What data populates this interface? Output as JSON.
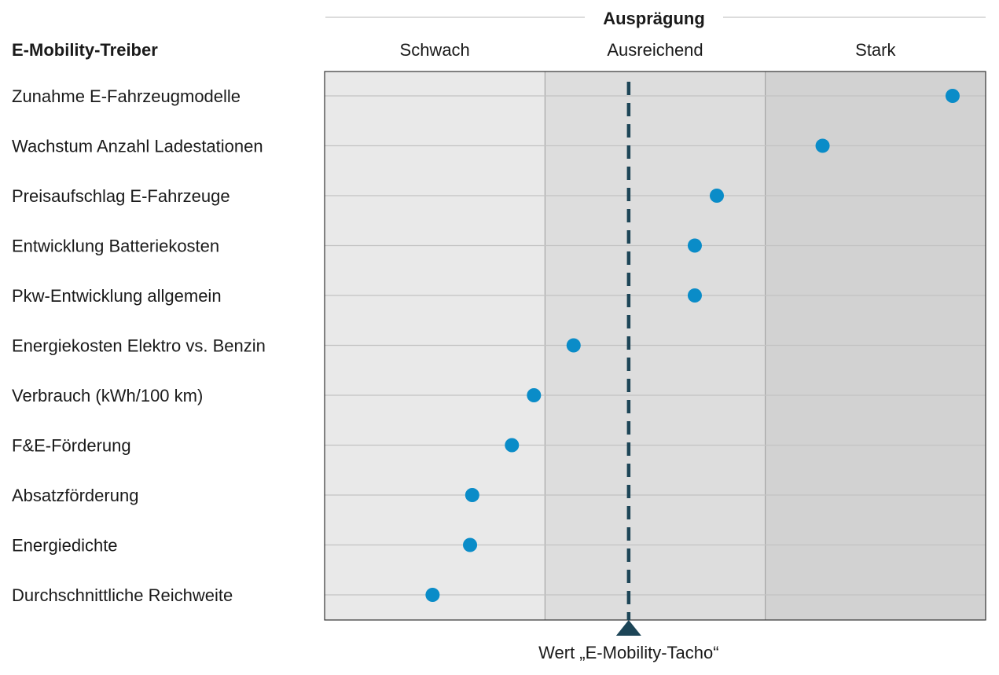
{
  "chart_data": {
    "type": "scatter",
    "title": "Ausprägung",
    "row_header": "E-Mobility-Treiber",
    "zones": [
      {
        "label": "Schwach",
        "range": [
          0,
          1
        ],
        "color": "#e9e9e9"
      },
      {
        "label": "Ausreichend",
        "range": [
          1,
          2
        ],
        "color": "#dddddd"
      },
      {
        "label": "Stark",
        "range": [
          2,
          3
        ],
        "color": "#d2d2d2"
      }
    ],
    "xlim": [
      0,
      3
    ],
    "categories": [
      "Zunahme E-Fahrzeugmodelle",
      "Wachstum Anzahl Ladestationen",
      "Preisaufschlag E-Fahrzeuge",
      "Entwicklung Batteriekosten",
      "Pkw-Entwicklung allgemein",
      "Energiekosten Elektro vs. Benzin",
      "Verbrauch (kWh/100 km)",
      "F&E-Förderung",
      "Absatzförderung",
      "Energiedichte",
      "Durchschnittliche Reichweite"
    ],
    "values": [
      2.85,
      2.26,
      1.78,
      1.68,
      1.68,
      1.13,
      0.95,
      0.85,
      0.67,
      0.66,
      0.49
    ],
    "reference_line": {
      "value": 1.38,
      "label": "Wert „E-Mobility-Tacho“"
    },
    "colors": {
      "point": "#0a8cc8",
      "reference": "#1d4557",
      "gridline": "#c3c3c3"
    }
  }
}
